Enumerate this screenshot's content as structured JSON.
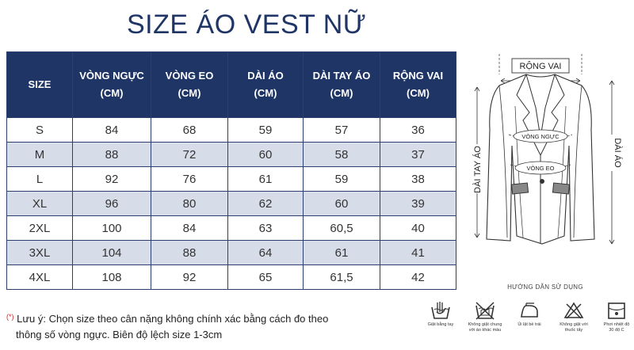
{
  "title": "SIZE ÁO VEST NỮ",
  "table": {
    "headers": [
      {
        "line1": "SIZE",
        "line2": ""
      },
      {
        "line1": "VÒNG NGỰC",
        "line2": "(CM)"
      },
      {
        "line1": "VÒNG EO",
        "line2": "(CM)"
      },
      {
        "line1": "DÀI ÁO",
        "line2": "(CM)"
      },
      {
        "line1": "DÀI TAY ÁO",
        "line2": "(CM)"
      },
      {
        "line1": "RỘNG VAI",
        "line2": "(CM)"
      }
    ],
    "rows": [
      [
        "S",
        "84",
        "68",
        "59",
        "57",
        "36"
      ],
      [
        "M",
        "88",
        "72",
        "60",
        "58",
        "37"
      ],
      [
        "L",
        "92",
        "76",
        "61",
        "59",
        "38"
      ],
      [
        "XL",
        "96",
        "80",
        "62",
        "60",
        "39"
      ],
      [
        "2XL",
        "100",
        "84",
        "63",
        "60,5",
        "40"
      ],
      [
        "3XL",
        "104",
        "88",
        "64",
        "61",
        "41"
      ],
      [
        "4XL",
        "108",
        "92",
        "65",
        "61,5",
        "42"
      ]
    ]
  },
  "diagram": {
    "shoulder_label": "RỘNG VAI",
    "chest_label": "VÒNG NGỰC",
    "waist_label": "VÒNG EO",
    "sleeve_label": "DÀI TAY ÁO",
    "length_label": "DÀI ÁO"
  },
  "care": {
    "title": "HƯỚNG DẪN SỬ DỤNG",
    "items": [
      {
        "icon": "hand-wash-icon",
        "label1": "Giặt bằng tay",
        "label2": ""
      },
      {
        "icon": "no-wash-together-icon",
        "label1": "Không giặt chung",
        "label2": "với áo khác màu"
      },
      {
        "icon": "iron-reverse-icon",
        "label1": "Ủi lật bề trái",
        "label2": ""
      },
      {
        "icon": "no-bleach-icon",
        "label1": "Không giặt với",
        "label2": "thuốc tẩy"
      },
      {
        "icon": "dry-30c-icon",
        "label1": "Phơi nhiệt độ",
        "label2": "30 độ C"
      }
    ]
  },
  "note": {
    "star": "(*)",
    "line1": "Lưu ý: Chọn size theo cân nặng không chính xác bằng cách đo theo",
    "line2": "thông số vòng ngực. Biên độ lệch size 1-3cm"
  },
  "colors": {
    "header_bg": "#1f3566",
    "stripe": "#d6dce8",
    "title": "#1f3566",
    "star": "#d8232a"
  }
}
